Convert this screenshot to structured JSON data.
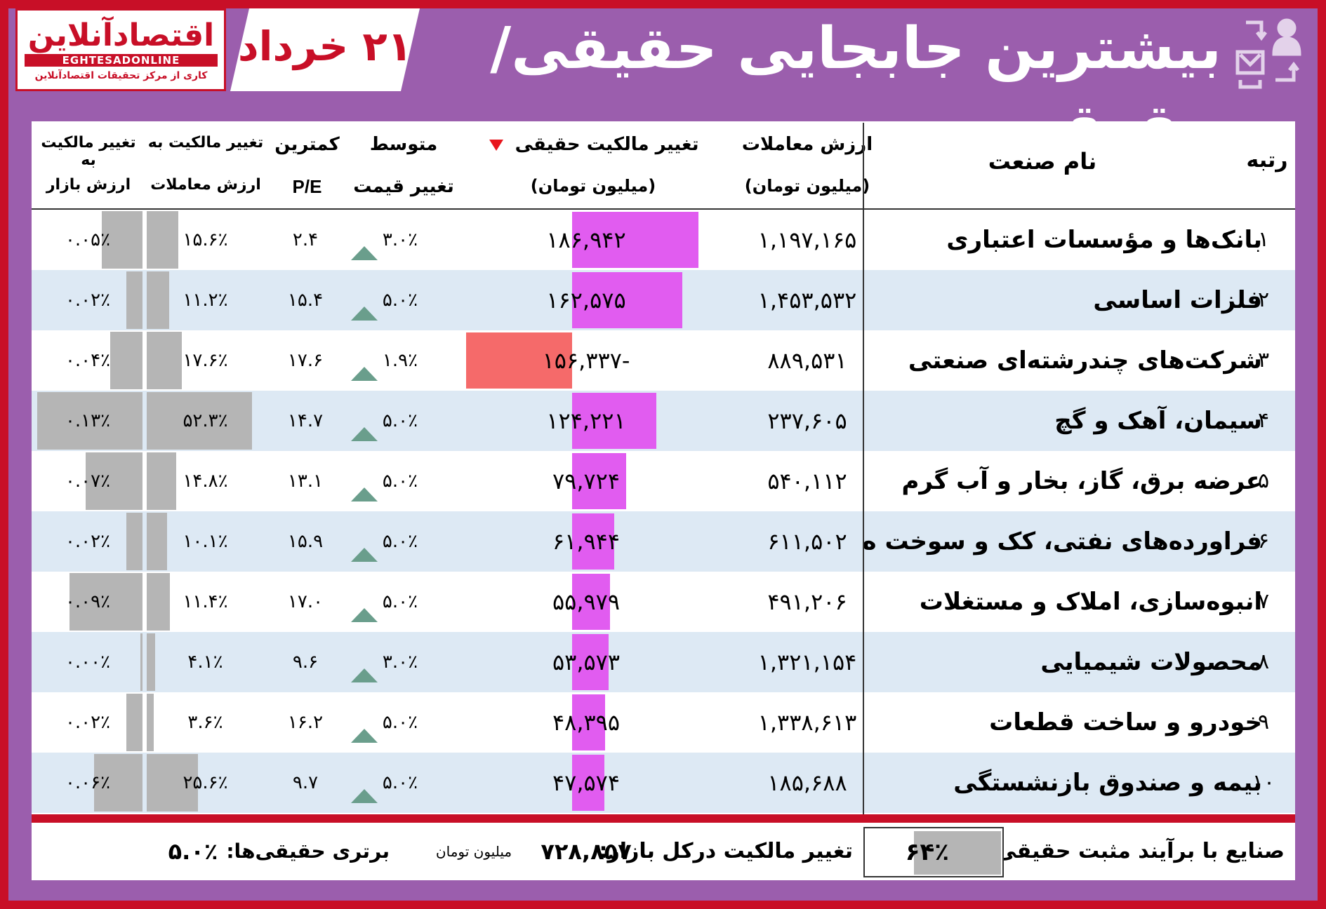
{
  "logo": {
    "name": "اقتصادآنلاین",
    "latin": "EGHTESADONLINE",
    "tagline": "کاری از مرکز تحقیقات اقتصادآنلاین"
  },
  "date": "۲۱ خرداد",
  "title": "بیشترین جابجایی حقیقی/حقوق",
  "header_icon": "transfer-people-icon",
  "headers": {
    "rank": "رتبه",
    "industry": "نام صنعت",
    "value_line1": "ارزش معاملات",
    "value_line2": "(میلیون تومان)",
    "real_line1": "تغییر مالکیت حقیقی",
    "real_line2": "(میلیون تومان)",
    "price_line1": "متوسط",
    "price_line2": "تغییر قیمت",
    "pe_line1": "کمترین",
    "pe_line2": "P/E",
    "vchg_line1": "تغییر مالکیت به",
    "vchg_line2": "ارزش معاملات",
    "mchg_line1": "تغییر مالکیت به",
    "mchg_line2": "ارزش بازار"
  },
  "sort_icon": "sort-down-icon",
  "price_icon": "up-triangle-icon",
  "colors": {
    "frame": "#c80f27",
    "panel": "#9b5ead",
    "positive_bar": "#e15cf0",
    "negative_bar": "#f56a6a",
    "gray_bar": "#b5b5b5",
    "up_triangle": "#6a9e8c"
  },
  "rows": [
    {
      "rank": "۱",
      "industry": "بانک‌ها و مؤسسات اعتباری",
      "value": "۱,۱۹۷,۱۶۵",
      "real": "۱۸۶,۹۴۲",
      "real_num": 186942,
      "price": "۳.۰٪",
      "pe": "۲.۴",
      "vchg": "۱۵.۶٪",
      "vchg_num": 15.6,
      "mchg": "۰.۰۵٪",
      "mchg_num": 0.05
    },
    {
      "rank": "۲",
      "industry": "فلزات اساسی",
      "value": "۱,۴۵۳,۵۳۲",
      "real": "۱۶۲,۵۷۵",
      "real_num": 162575,
      "price": "۵.۰٪",
      "pe": "۱۵.۴",
      "vchg": "۱۱.۲٪",
      "vchg_num": 11.2,
      "mchg": "۰.۰۲٪",
      "mchg_num": 0.02
    },
    {
      "rank": "۳",
      "industry": "شرکت‌های چندرشته‌ای صنعتی",
      "value": "۸۸۹,۵۳۱",
      "real": "-۱۵۶,۳۳۷",
      "real_num": -156337,
      "price": "۱.۹٪",
      "pe": "۱۷.۶",
      "vchg": "۱۷.۶٪",
      "vchg_num": 17.6,
      "mchg": "۰.۰۴٪",
      "mchg_num": 0.04
    },
    {
      "rank": "۴",
      "industry": "سیمان، آهک و گچ",
      "value": "۲۳۷,۶۰۵",
      "real": "۱۲۴,۲۲۱",
      "real_num": 124221,
      "price": "۵.۰٪",
      "pe": "۱۴.۷",
      "vchg": "۵۲.۳٪",
      "vchg_num": 52.3,
      "mchg": "۰.۱۳٪",
      "mchg_num": 0.13
    },
    {
      "rank": "۵",
      "industry": "عرضه برق، گاز، بخار و آب گرم",
      "value": "۵۴۰,۱۱۲",
      "real": "۷۹,۷۲۴",
      "real_num": 79724,
      "price": "۵.۰٪",
      "pe": "۱۳.۱",
      "vchg": "۱۴.۸٪",
      "vchg_num": 14.8,
      "mchg": "۰.۰۷٪",
      "mchg_num": 0.07
    },
    {
      "rank": "۶",
      "industry": "فراورده‌های نفتی، کک و سوخت ه",
      "value": "۶۱۱,۵۰۲",
      "real": "۶۱,۹۴۴",
      "real_num": 61944,
      "price": "۵.۰٪",
      "pe": "۱۵.۹",
      "vchg": "۱۰.۱٪",
      "vchg_num": 10.1,
      "mchg": "۰.۰۲٪",
      "mchg_num": 0.02
    },
    {
      "rank": "۷",
      "industry": "انبوه‌سازی، املاک و مستغلات",
      "value": "۴۹۱,۲۰۶",
      "real": "۵۵,۹۷۹",
      "real_num": 55979,
      "price": "۵.۰٪",
      "pe": "۱۷.۰",
      "vchg": "۱۱.۴٪",
      "vchg_num": 11.4,
      "mchg": "۰.۰۹٪",
      "mchg_num": 0.09
    },
    {
      "rank": "۸",
      "industry": "محصولات شیمیایی",
      "value": "۱,۳۲۱,۱۵۴",
      "real": "۵۳,۵۷۳",
      "real_num": 53573,
      "price": "۳.۰٪",
      "pe": "۹.۶",
      "vchg": "۴.۱٪",
      "vchg_num": 4.1,
      "mchg": "۰.۰۰٪",
      "mchg_num": 0.0
    },
    {
      "rank": "۹",
      "industry": "خودرو و ساخت قطعات",
      "value": "۱,۳۳۸,۶۱۳",
      "real": "۴۸,۳۹۵",
      "real_num": 48395,
      "price": "۵.۰٪",
      "pe": "۱۶.۲",
      "vchg": "۳.۶٪",
      "vchg_num": 3.6,
      "mchg": "۰.۰۲٪",
      "mchg_num": 0.02
    },
    {
      "rank": "۱۰",
      "industry": "بیمه و صندوق بازنشستگی",
      "value": "۱۸۵,۶۸۸",
      "real": "۴۷,۵۷۴",
      "real_num": 47574,
      "price": "۵.۰٪",
      "pe": "۹.۷",
      "vchg": "۲۵.۶٪",
      "vchg_num": 25.6,
      "mchg": "۰.۰۶٪",
      "mchg_num": 0.06
    }
  ],
  "footer": {
    "positive_label": "صنایع با برآیند مثبت حقیقی:",
    "positive_value": "۶۴٪",
    "positive_num": 64,
    "market_label": "تغییر مالکیت درکل بازار:",
    "market_value": "۷۲۸,۸۵۷",
    "market_unit": "میلیون تومان",
    "real_adv_label": "برتری حقیقی‌ها:",
    "real_adv_value": "۵.۰٪"
  }
}
